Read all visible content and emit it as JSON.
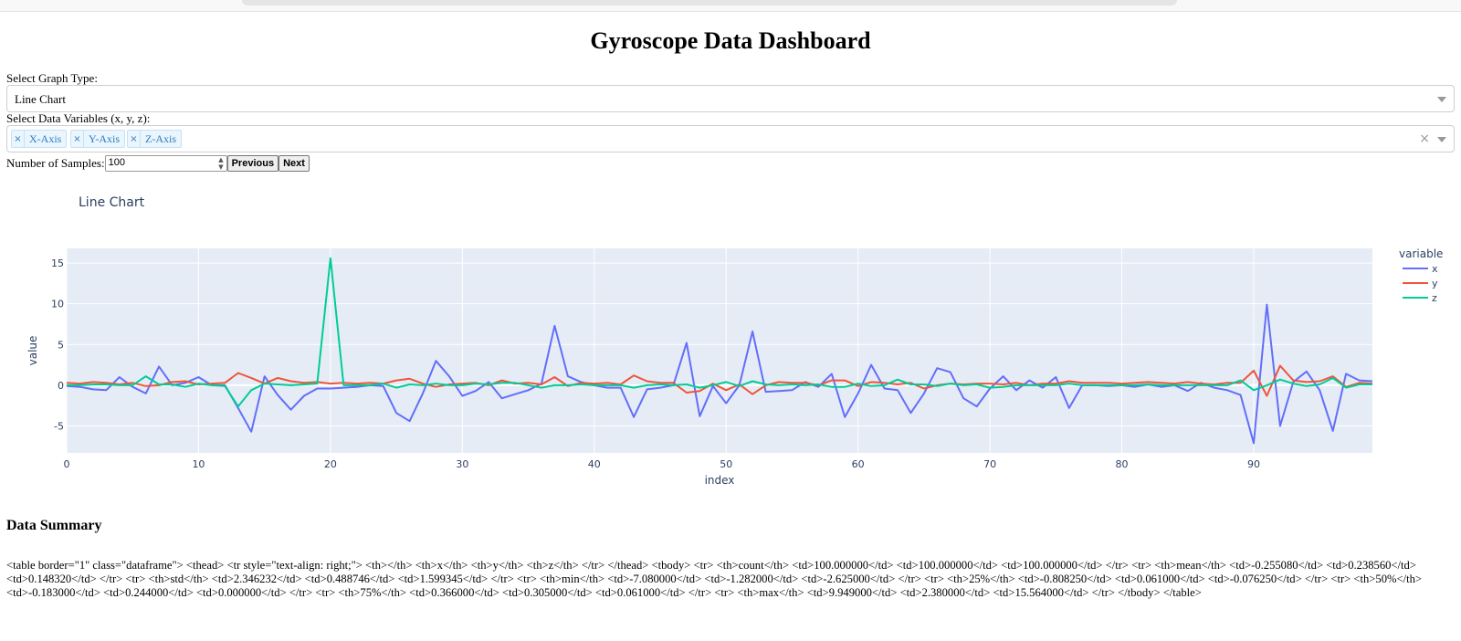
{
  "page": {
    "title": "Gyroscope Data Dashboard"
  },
  "controls": {
    "graph_type_label": "Select Graph Type:",
    "graph_type_value": "Line Chart",
    "variables_label": "Select Data Variables (x, y, z):",
    "chips": [
      "X-Axis",
      "Y-Axis",
      "Z-Axis"
    ],
    "chip_remove": "×",
    "clear_all": "×",
    "samples_label": "Number of Samples:",
    "samples_value": "100",
    "previous_label": "Previous",
    "next_label": "Next"
  },
  "chart_data": {
    "type": "line",
    "title": "Line Chart",
    "xlabel": "index",
    "ylabel": "value",
    "legend_title": "variable",
    "legend_position": "top-right",
    "xlim": [
      0,
      99
    ],
    "ylim": [
      -8.3,
      16.8
    ],
    "xticks": [
      0,
      10,
      20,
      30,
      40,
      50,
      60,
      70,
      80,
      90
    ],
    "yticks": [
      -5,
      0,
      5,
      10,
      15
    ],
    "grid": true,
    "plot_bg": "#e5ecf6",
    "x": [
      0,
      1,
      2,
      3,
      4,
      5,
      6,
      7,
      8,
      9,
      10,
      11,
      12,
      13,
      14,
      15,
      16,
      17,
      18,
      19,
      20,
      21,
      22,
      23,
      24,
      25,
      26,
      27,
      28,
      29,
      30,
      31,
      32,
      33,
      34,
      35,
      36,
      37,
      38,
      39,
      40,
      41,
      42,
      43,
      44,
      45,
      46,
      47,
      48,
      49,
      50,
      51,
      52,
      53,
      54,
      55,
      56,
      57,
      58,
      59,
      60,
      61,
      62,
      63,
      64,
      65,
      66,
      67,
      68,
      69,
      70,
      71,
      72,
      73,
      74,
      75,
      76,
      77,
      78,
      79,
      80,
      81,
      82,
      83,
      84,
      85,
      86,
      87,
      88,
      89,
      90,
      91,
      92,
      93,
      94,
      95,
      96,
      97,
      98,
      99
    ],
    "series": [
      {
        "name": "x",
        "color": "#636efa",
        "values": [
          -0.1,
          -0.2,
          -0.5,
          -0.6,
          1.0,
          -0.2,
          -1.0,
          2.3,
          0.0,
          0.3,
          1.0,
          0.0,
          0.0,
          -2.8,
          -5.7,
          1.1,
          -1.2,
          -3.0,
          -1.3,
          -0.4,
          -0.4,
          -0.3,
          -0.2,
          0.0,
          -0.1,
          -3.4,
          -4.4,
          -1.0,
          3.0,
          1.1,
          -1.3,
          -0.7,
          0.4,
          -1.6,
          -1.1,
          -0.6,
          0.2,
          7.3,
          1.1,
          0.4,
          0.0,
          -0.3,
          -0.3,
          -3.9,
          -0.5,
          -0.3,
          0.0,
          5.2,
          -3.8,
          -0.1,
          -2.2,
          0.0,
          6.6,
          -0.8,
          -0.7,
          -0.6,
          0.4,
          -0.2,
          1.4,
          -3.9,
          -1.0,
          2.5,
          -0.4,
          -0.6,
          -3.4,
          -1.0,
          2.1,
          1.6,
          -1.6,
          -2.6,
          -0.4,
          1.1,
          -0.6,
          0.6,
          -0.3,
          1.0,
          -2.8,
          0.0,
          0.0,
          -0.1,
          0.0,
          -0.2,
          0.1,
          -0.2,
          0.0,
          -0.7,
          0.3,
          -0.3,
          -0.6,
          -1.2,
          -7.1,
          9.9,
          -5.0,
          0.4,
          1.7,
          -0.6,
          -5.6,
          1.4,
          0.6,
          0.5
        ]
      },
      {
        "name": "y",
        "color": "#ef553b",
        "values": [
          0.3,
          0.2,
          0.4,
          0.3,
          0.1,
          0.3,
          -0.1,
          0.0,
          0.4,
          0.5,
          0.1,
          0.2,
          0.3,
          1.5,
          0.9,
          0.2,
          0.9,
          0.5,
          0.3,
          0.4,
          0.2,
          0.3,
          0.2,
          0.3,
          0.2,
          0.6,
          0.8,
          0.2,
          -0.2,
          0.1,
          0.2,
          0.3,
          0.0,
          0.6,
          0.2,
          0.3,
          0.1,
          1.0,
          -0.1,
          0.3,
          0.2,
          0.3,
          0.1,
          1.2,
          0.5,
          0.3,
          0.3,
          -0.9,
          -0.7,
          0.2,
          -0.6,
          0.1,
          -1.1,
          0.0,
          0.4,
          0.3,
          0.3,
          0.0,
          0.6,
          0.6,
          -0.1,
          0.4,
          0.3,
          0.1,
          0.3,
          -0.4,
          0.0,
          0.2,
          0.1,
          0.2,
          0.2,
          0.1,
          0.3,
          0.0,
          0.2,
          0.2,
          0.5,
          0.3,
          0.3,
          0.3,
          0.2,
          0.3,
          0.4,
          0.3,
          0.2,
          0.4,
          0.2,
          0.1,
          0.3,
          0.3,
          1.8,
          -1.3,
          2.4,
          0.6,
          0.4,
          0.5,
          1.1,
          -0.2,
          0.3,
          0.2
        ]
      },
      {
        "name": "z",
        "color": "#00cc96",
        "values": [
          0.0,
          0.0,
          0.1,
          0.1,
          0.0,
          0.0,
          1.1,
          0.1,
          0.1,
          -0.2,
          0.2,
          0.0,
          -0.1,
          -2.6,
          -0.6,
          0.2,
          0.1,
          0.0,
          0.1,
          0.2,
          15.6,
          0.0,
          0.0,
          0.0,
          0.2,
          -0.3,
          0.1,
          0.0,
          0.2,
          0.0,
          0.0,
          0.2,
          0.1,
          0.3,
          0.3,
          0.0,
          -0.3,
          0.0,
          0.0,
          0.1,
          0.0,
          0.0,
          0.0,
          -0.3,
          0.0,
          0.1,
          0.0,
          0.1,
          -0.3,
          0.0,
          0.4,
          -0.1,
          0.5,
          0.1,
          0.0,
          0.1,
          0.0,
          0.1,
          -0.2,
          -0.2,
          0.2,
          -0.1,
          0.0,
          0.7,
          0.1,
          0.1,
          -0.1,
          0.2,
          0.0,
          0.1,
          -0.3,
          -0.2,
          0.0,
          0.0,
          0.0,
          0.0,
          0.2,
          0.0,
          0.0,
          0.0,
          0.0,
          0.0,
          0.1,
          0.0,
          0.0,
          0.0,
          0.0,
          0.0,
          0.0,
          0.6,
          -0.6,
          0.0,
          0.7,
          0.2,
          -0.1,
          0.1,
          0.9,
          -0.3,
          0.1,
          0.1
        ]
      }
    ]
  },
  "summary": {
    "heading": "Data Summary",
    "raw_html_text": "<table border=\"1\" class=\"dataframe\"> <thead> <tr style=\"text-align: right;\"> <th></th> <th>x</th> <th>y</th> <th>z</th> </tr> </thead> <tbody> <tr> <th>count</th> <td>100.000000</td> <td>100.000000</td> <td>100.000000</td> </tr> <tr> <th>mean</th> <td>-0.255080</td> <td>0.238560</td> <td>0.148320</td> </tr> <tr> <th>std</th> <td>2.346232</td> <td>0.488746</td> <td>1.599345</td> </tr> <tr> <th>min</th> <td>-7.080000</td> <td>-1.282000</td> <td>-2.625000</td> </tr> <tr> <th>25%</th> <td>-0.808250</td> <td>0.061000</td> <td>-0.076250</td> </tr> <tr> <th>50%</th> <td>-0.183000</td> <td>0.244000</td> <td>0.000000</td> </tr> <tr> <th>75%</th> <td>0.366000</td> <td>0.305000</td> <td>0.061000</td> </tr> <tr> <th>max</th> <td>9.949000</td> <td>2.380000</td> <td>15.564000</td> </tr> </tbody> </table>"
  }
}
